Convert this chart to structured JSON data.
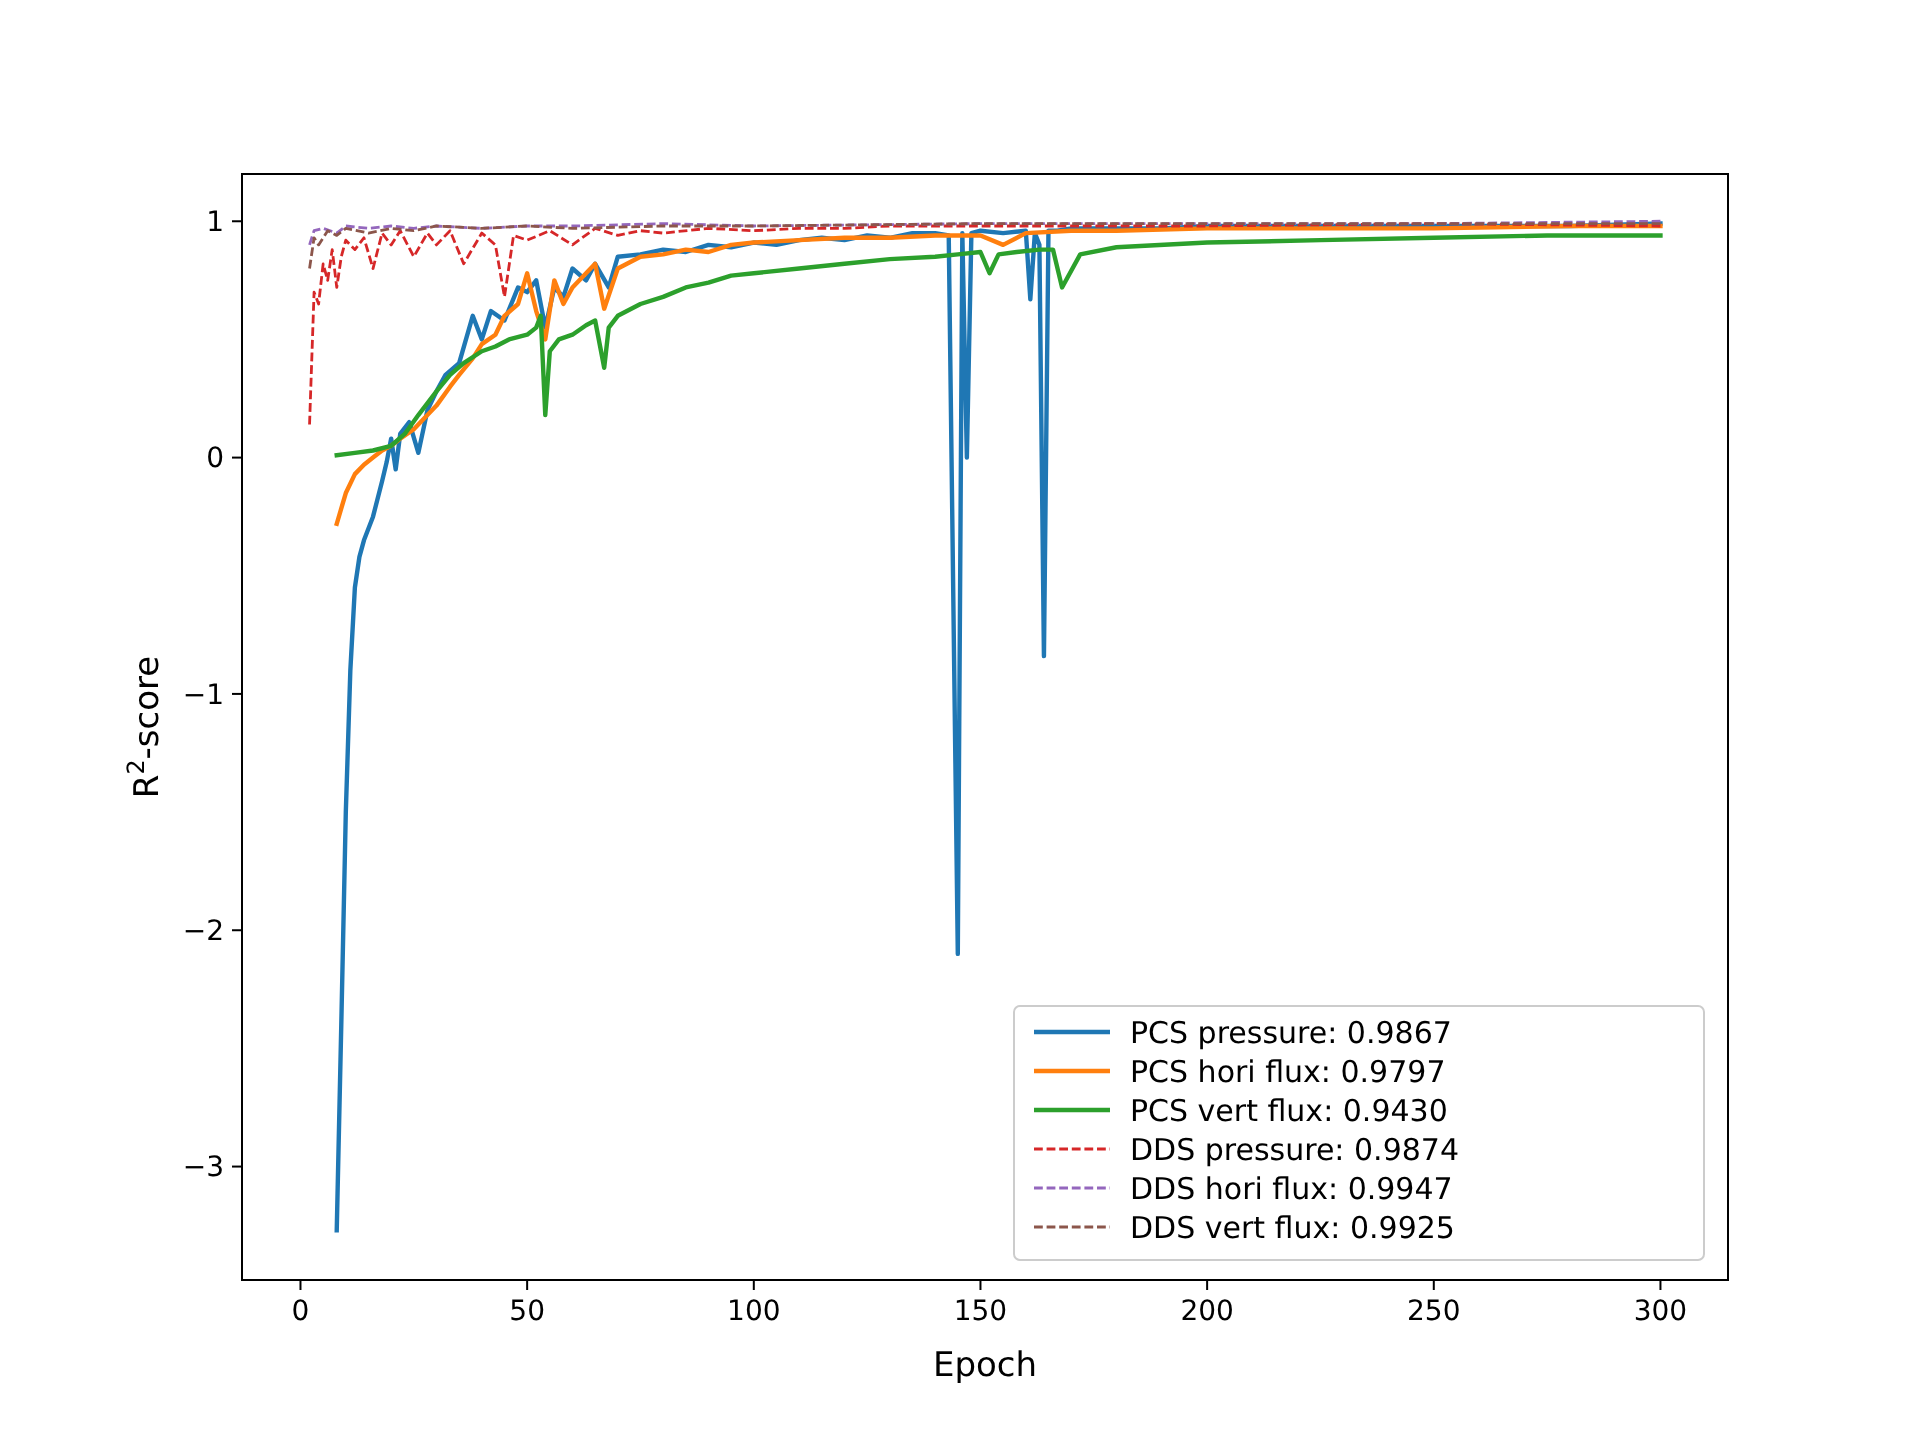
{
  "chart_data": {
    "type": "line",
    "xlabel": "Epoch",
    "ylabel": "R$^{2}$-score",
    "xlim": [
      -12.9,
      314.9
    ],
    "xticks": [
      0,
      50,
      100,
      150,
      200,
      250,
      300
    ],
    "ylim": [
      -3.48,
      1.2
    ],
    "yticks": [
      -3,
      -2,
      -1,
      0,
      1
    ],
    "grid": false,
    "legend": "bottom right",
    "marker": "none",
    "series": [
      {
        "name": "PCS pressure: 0.9867",
        "color": "#1f77b4",
        "line_style": "solid",
        "x": [
          8,
          9,
          10,
          11,
          12,
          13,
          14,
          16,
          18,
          19,
          20,
          21,
          22,
          24,
          26,
          28,
          30,
          32,
          35,
          38,
          40,
          42,
          45,
          48,
          50,
          52,
          54,
          56,
          58,
          60,
          63,
          65,
          68,
          70,
          75,
          80,
          85,
          90,
          95,
          100,
          105,
          110,
          115,
          120,
          125,
          130,
          135,
          140,
          143,
          145,
          146,
          147,
          148,
          150,
          155,
          160,
          161,
          162,
          163,
          164,
          165,
          167,
          170,
          180,
          190,
          200,
          220,
          240,
          260,
          280,
          300
        ],
        "values": [
          -3.27,
          -2.4,
          -1.5,
          -0.9,
          -0.55,
          -0.42,
          -0.35,
          -0.25,
          -0.1,
          -0.02,
          0.08,
          -0.05,
          0.1,
          0.15,
          0.02,
          0.2,
          0.28,
          0.35,
          0.4,
          0.6,
          0.5,
          0.62,
          0.58,
          0.72,
          0.7,
          0.75,
          0.55,
          0.72,
          0.68,
          0.8,
          0.75,
          0.82,
          0.72,
          0.85,
          0.86,
          0.88,
          0.87,
          0.9,
          0.89,
          0.91,
          0.9,
          0.92,
          0.93,
          0.92,
          0.94,
          0.93,
          0.95,
          0.95,
          0.94,
          -2.1,
          0.95,
          0.0,
          0.95,
          0.96,
          0.95,
          0.96,
          0.67,
          0.95,
          0.9,
          -0.84,
          0.96,
          0.96,
          0.97,
          0.97,
          0.97,
          0.98,
          0.98,
          0.98,
          0.98,
          0.98,
          0.99
        ]
      },
      {
        "name": "PCS hori flux: 0.9797",
        "color": "#ff7f0e",
        "line_style": "solid",
        "x": [
          8,
          10,
          12,
          14,
          16,
          18,
          20,
          22,
          25,
          28,
          30,
          33,
          35,
          38,
          40,
          43,
          45,
          48,
          50,
          52,
          54,
          56,
          58,
          60,
          63,
          65,
          67,
          70,
          75,
          80,
          85,
          90,
          95,
          100,
          110,
          120,
          130,
          140,
          150,
          155,
          160,
          170,
          180,
          200,
          220,
          250,
          280,
          300
        ],
        "values": [
          -0.28,
          -0.15,
          -0.07,
          -0.03,
          0.0,
          0.03,
          0.05,
          0.08,
          0.12,
          0.18,
          0.22,
          0.3,
          0.35,
          0.42,
          0.48,
          0.52,
          0.6,
          0.65,
          0.78,
          0.62,
          0.5,
          0.75,
          0.65,
          0.72,
          0.78,
          0.82,
          0.63,
          0.8,
          0.85,
          0.86,
          0.88,
          0.87,
          0.9,
          0.91,
          0.92,
          0.93,
          0.93,
          0.94,
          0.94,
          0.9,
          0.95,
          0.96,
          0.96,
          0.97,
          0.97,
          0.97,
          0.98,
          0.98
        ]
      },
      {
        "name": "PCS vert flux: 0.9430",
        "color": "#2ca02c",
        "line_style": "solid",
        "x": [
          8,
          12,
          16,
          20,
          23,
          26,
          30,
          33,
          36,
          40,
          43,
          46,
          50,
          52,
          53,
          54,
          55,
          57,
          60,
          63,
          65,
          67,
          68,
          70,
          75,
          80,
          85,
          90,
          95,
          100,
          110,
          120,
          130,
          140,
          145,
          150,
          152,
          154,
          158,
          163,
          166,
          168,
          172,
          180,
          200,
          225,
          250,
          275,
          300
        ],
        "values": [
          0.01,
          0.02,
          0.03,
          0.05,
          0.1,
          0.18,
          0.28,
          0.35,
          0.4,
          0.45,
          0.47,
          0.5,
          0.52,
          0.55,
          0.6,
          0.18,
          0.45,
          0.5,
          0.52,
          0.56,
          0.58,
          0.38,
          0.55,
          0.6,
          0.65,
          0.68,
          0.72,
          0.74,
          0.77,
          0.78,
          0.8,
          0.82,
          0.84,
          0.85,
          0.86,
          0.87,
          0.78,
          0.86,
          0.87,
          0.88,
          0.88,
          0.72,
          0.86,
          0.89,
          0.91,
          0.92,
          0.93,
          0.94,
          0.94
        ]
      },
      {
        "name": "DDS pressure: 0.9874",
        "color": "#d62728",
        "line_style": "dashed",
        "x": [
          2,
          3,
          4,
          5,
          6,
          7,
          8,
          9,
          10,
          12,
          14,
          16,
          18,
          20,
          22,
          25,
          28,
          30,
          33,
          36,
          40,
          43,
          45,
          47,
          50,
          55,
          60,
          65,
          70,
          75,
          80,
          90,
          100,
          110,
          120,
          130,
          150,
          175,
          200,
          250,
          300
        ],
        "values": [
          0.14,
          0.7,
          0.65,
          0.82,
          0.75,
          0.88,
          0.72,
          0.85,
          0.92,
          0.88,
          0.93,
          0.8,
          0.95,
          0.9,
          0.96,
          0.85,
          0.95,
          0.9,
          0.96,
          0.82,
          0.95,
          0.9,
          0.68,
          0.94,
          0.92,
          0.96,
          0.9,
          0.97,
          0.94,
          0.96,
          0.95,
          0.97,
          0.96,
          0.97,
          0.97,
          0.98,
          0.98,
          0.98,
          0.98,
          0.99,
          0.98
        ]
      },
      {
        "name": "DDS hori flux: 0.9947",
        "color": "#9467bd",
        "line_style": "dashed",
        "x": [
          2,
          3,
          5,
          8,
          10,
          15,
          20,
          25,
          30,
          40,
          50,
          60,
          80,
          100,
          150,
          200,
          250,
          300
        ],
        "values": [
          0.9,
          0.96,
          0.97,
          0.95,
          0.98,
          0.97,
          0.98,
          0.97,
          0.98,
          0.97,
          0.98,
          0.98,
          0.99,
          0.98,
          0.99,
          0.99,
          0.99,
          1.0
        ]
      },
      {
        "name": "DDS vert flux: 0.9925",
        "color": "#8c564b",
        "line_style": "dashed",
        "x": [
          2,
          3,
          4,
          6,
          8,
          10,
          15,
          20,
          25,
          30,
          40,
          50,
          60,
          80,
          100,
          150,
          200,
          250,
          300
        ],
        "values": [
          0.8,
          0.93,
          0.9,
          0.96,
          0.94,
          0.97,
          0.95,
          0.97,
          0.96,
          0.98,
          0.97,
          0.98,
          0.97,
          0.98,
          0.98,
          0.99,
          0.99,
          0.99,
          0.99
        ]
      }
    ]
  }
}
